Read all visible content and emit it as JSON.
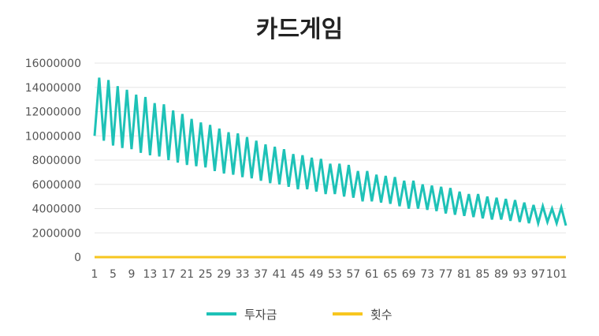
{
  "chart_data": {
    "type": "line",
    "title": "카드게임",
    "xlabel": "",
    "ylabel": "",
    "ylim": [
      0,
      16000000
    ],
    "yticks": [
      0,
      2000000,
      4000000,
      6000000,
      8000000,
      10000000,
      12000000,
      14000000,
      16000000
    ],
    "ytick_labels": [
      "0",
      "2000000",
      "4000000",
      "6000000",
      "8000000",
      "10000000",
      "12000000",
      "14000000",
      "16000000"
    ],
    "xlim": [
      1,
      103
    ],
    "xticks": [
      1,
      5,
      9,
      13,
      17,
      21,
      25,
      29,
      33,
      37,
      41,
      45,
      49,
      53,
      57,
      61,
      65,
      69,
      73,
      77,
      81,
      85,
      89,
      93,
      97,
      101
    ],
    "xtick_labels": [
      "1",
      "5",
      "9",
      "13",
      "17",
      "21",
      "25",
      "29",
      "33",
      "37",
      "41",
      "45",
      "49",
      "53",
      "57",
      "61",
      "65",
      "69",
      "73",
      "77",
      "81",
      "85",
      "89",
      "93",
      "97",
      "101"
    ],
    "grid": true,
    "legend_position": "bottom",
    "series": [
      {
        "name": "투자금",
        "color": "#1ec2b7",
        "x": [
          1,
          2,
          3,
          4,
          5,
          6,
          7,
          8,
          9,
          10,
          11,
          12,
          13,
          14,
          15,
          16,
          17,
          18,
          19,
          20,
          21,
          22,
          23,
          24,
          25,
          26,
          27,
          28,
          29,
          30,
          31,
          32,
          33,
          34,
          35,
          36,
          37,
          38,
          39,
          40,
          41,
          42,
          43,
          44,
          45,
          46,
          47,
          48,
          49,
          50,
          51,
          52,
          53,
          54,
          55,
          56,
          57,
          58,
          59,
          60,
          61,
          62,
          63,
          64,
          65,
          66,
          67,
          68,
          69,
          70,
          71,
          72,
          73,
          74,
          75,
          76,
          77,
          78,
          79,
          80,
          81,
          82,
          83,
          84,
          85,
          86,
          87,
          88,
          89,
          90,
          91,
          92,
          93,
          94,
          95,
          96,
          97,
          98,
          99,
          100,
          101,
          102,
          103
        ],
        "values": [
          10000000,
          14800000,
          9600000,
          14600000,
          9200000,
          14100000,
          9000000,
          13800000,
          8900000,
          13400000,
          8600000,
          13200000,
          8400000,
          12700000,
          8300000,
          12600000,
          8000000,
          12100000,
          7800000,
          11800000,
          7600000,
          11400000,
          7500000,
          11100000,
          7400000,
          10900000,
          7100000,
          10600000,
          6900000,
          10300000,
          6800000,
          10200000,
          6600000,
          9900000,
          6500000,
          9600000,
          6300000,
          9300000,
          6100000,
          9100000,
          6000000,
          8900000,
          5800000,
          8500000,
          5600000,
          8400000,
          5600000,
          8200000,
          5400000,
          8100000,
          5200000,
          7700000,
          5200000,
          7700000,
          5000000,
          7600000,
          4900000,
          7100000,
          4600000,
          7100000,
          4600000,
          6800000,
          4500000,
          6700000,
          4400000,
          6600000,
          4200000,
          6300000,
          4000000,
          6300000,
          4000000,
          6000000,
          3900000,
          5900000,
          3800000,
          5800000,
          3600000,
          5700000,
          3500000,
          5400000,
          3400000,
          5200000,
          3300000,
          5200000,
          3200000,
          5000000,
          3100000,
          4900000,
          3100000,
          4800000,
          3000000,
          4700000,
          2900000,
          4500000,
          2800000,
          4300000,
          2800000,
          4200000,
          2900000,
          4000000,
          2800000,
          4100000,
          2600000
        ]
      },
      {
        "name": "횟수",
        "color": "#f7c61f",
        "x": [
          1,
          2,
          3,
          4,
          5,
          6,
          7,
          8,
          9,
          10,
          11,
          12,
          13,
          14,
          15,
          16,
          17,
          18,
          19,
          20,
          21,
          22,
          23,
          24,
          25,
          26,
          27,
          28,
          29,
          30,
          31,
          32,
          33,
          34,
          35,
          36,
          37,
          38,
          39,
          40,
          41,
          42,
          43,
          44,
          45,
          46,
          47,
          48,
          49,
          50,
          51,
          52,
          53,
          54,
          55,
          56,
          57,
          58,
          59,
          60,
          61,
          62,
          63,
          64,
          65,
          66,
          67,
          68,
          69,
          70,
          71,
          72,
          73,
          74,
          75,
          76,
          77,
          78,
          79,
          80,
          81,
          82,
          83,
          84,
          85,
          86,
          87,
          88,
          89,
          90,
          91,
          92,
          93,
          94,
          95,
          96,
          97,
          98,
          99,
          100,
          101,
          102,
          103
        ],
        "values": [
          1,
          2,
          3,
          4,
          5,
          6,
          7,
          8,
          9,
          10,
          11,
          12,
          13,
          14,
          15,
          16,
          17,
          18,
          19,
          20,
          21,
          22,
          23,
          24,
          25,
          26,
          27,
          28,
          29,
          30,
          31,
          32,
          33,
          34,
          35,
          36,
          37,
          38,
          39,
          40,
          41,
          42,
          43,
          44,
          45,
          46,
          47,
          48,
          49,
          50,
          51,
          52,
          53,
          54,
          55,
          56,
          57,
          58,
          59,
          60,
          61,
          62,
          63,
          64,
          65,
          66,
          67,
          68,
          69,
          70,
          71,
          72,
          73,
          74,
          75,
          76,
          77,
          78,
          79,
          80,
          81,
          82,
          83,
          84,
          85,
          86,
          87,
          88,
          89,
          90,
          91,
          92,
          93,
          94,
          95,
          96,
          97,
          98,
          99,
          100,
          101,
          102,
          103
        ]
      }
    ]
  }
}
